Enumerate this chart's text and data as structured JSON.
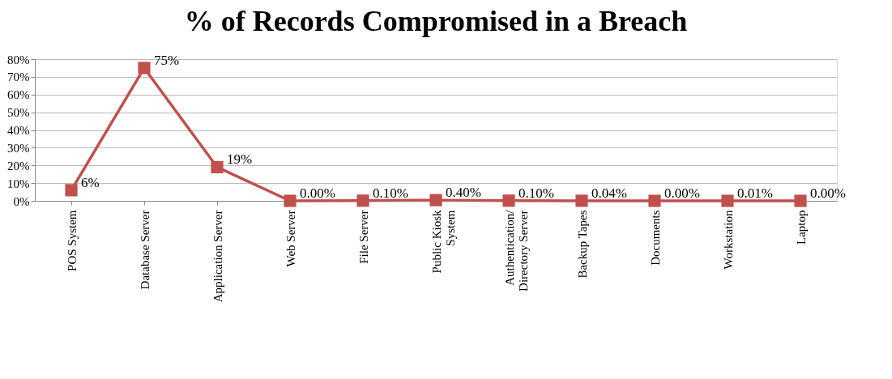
{
  "chart_data": {
    "type": "line",
    "title": "% of Records Compromised in a Breach",
    "categories": [
      "POS System",
      "Database Server",
      "Application Server",
      "Web Server",
      "File Server",
      "Public Kiosk\nSystem",
      "Authentication/\nDirectory Server",
      "Backup Tapes",
      "Documents",
      "Workstation",
      "Laptop"
    ],
    "series": [
      {
        "color": "#c0504d",
        "values": [
          6,
          75,
          19,
          0,
          0.1,
          0.4,
          0.1,
          0.04,
          0,
          0.01,
          0
        ],
        "value_labels": [
          "6%",
          "75%",
          "19%",
          "0.00%",
          "0.10%",
          "0.40%",
          "0.10%",
          "0.04%",
          "0.00%",
          "0.01%",
          "0.00%"
        ]
      }
    ],
    "ylim": [
      0,
      80
    ],
    "yticks": [
      {
        "value": 0,
        "label": "0%"
      },
      {
        "value": 10,
        "label": "10%"
      },
      {
        "value": 20,
        "label": "20%"
      },
      {
        "value": 30,
        "label": "30%"
      },
      {
        "value": 40,
        "label": "40%"
      },
      {
        "value": 50,
        "label": "50%"
      },
      {
        "value": 60,
        "label": "60%"
      },
      {
        "value": 70,
        "label": "70%"
      },
      {
        "value": 80,
        "label": "80%"
      }
    ],
    "grid": "y",
    "marker": "square",
    "line_style": "solid"
  }
}
